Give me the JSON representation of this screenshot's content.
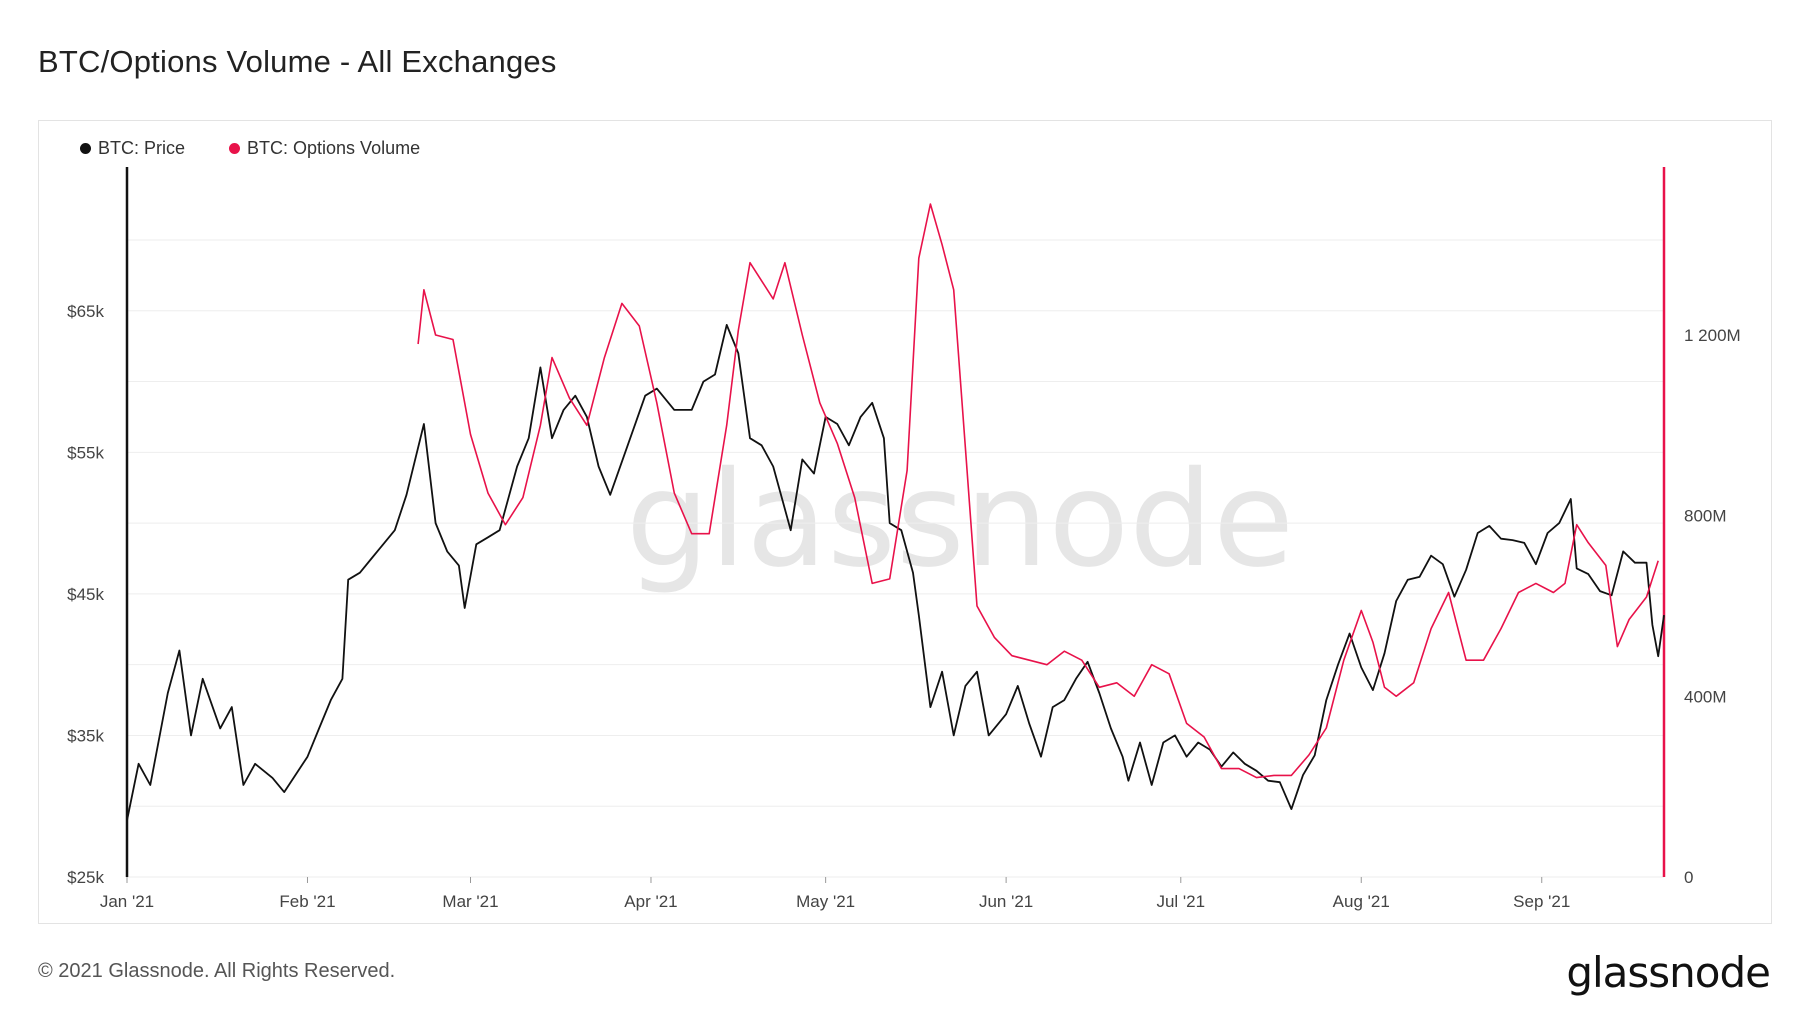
{
  "title": "BTC/Options Volume - All Exchanges",
  "legend": [
    {
      "label": "BTC: Price",
      "color": "#111111"
    },
    {
      "label": "BTC: Options Volume",
      "color": "#e8124a"
    }
  ],
  "watermark": "glassnode",
  "footer": "© 2021 Glassnode. All Rights Reserved.",
  "logo": "glassnode",
  "chart_data": {
    "type": "line",
    "x_ticks": [
      "Jan '21",
      "Feb '21",
      "Mar '21",
      "Apr '21",
      "May '21",
      "Jun '21",
      "Jul '21",
      "Aug '21",
      "Sep '21"
    ],
    "y_left": {
      "ticks": [
        "$25k",
        "$35k",
        "$45k",
        "$55k",
        "$65k"
      ],
      "values": [
        25000,
        35000,
        45000,
        55000,
        65000
      ]
    },
    "y_right": {
      "ticks": [
        "0",
        "400M",
        "800M",
        "1 200M"
      ],
      "values": [
        0,
        400000000,
        800000000,
        1200000000
      ]
    },
    "x_range": [
      "2021-01-01",
      "2021-09-22"
    ],
    "series": [
      {
        "name": "BTC: Price",
        "axis": "left",
        "color": "#111111",
        "points": [
          [
            "2021-01-01",
            29000
          ],
          [
            "2021-01-03",
            33000
          ],
          [
            "2021-01-05",
            31500
          ],
          [
            "2021-01-08",
            38000
          ],
          [
            "2021-01-10",
            41000
          ],
          [
            "2021-01-12",
            35000
          ],
          [
            "2021-01-14",
            39000
          ],
          [
            "2021-01-17",
            35500
          ],
          [
            "2021-01-19",
            37000
          ],
          [
            "2021-01-21",
            31500
          ],
          [
            "2021-01-23",
            33000
          ],
          [
            "2021-01-26",
            32000
          ],
          [
            "2021-01-28",
            31000
          ],
          [
            "2021-02-01",
            33500
          ],
          [
            "2021-02-03",
            35500
          ],
          [
            "2021-02-05",
            37500
          ],
          [
            "2021-02-07",
            39000
          ],
          [
            "2021-02-08",
            46000
          ],
          [
            "2021-02-10",
            46500
          ],
          [
            "2021-02-12",
            47500
          ],
          [
            "2021-02-14",
            48500
          ],
          [
            "2021-02-16",
            49500
          ],
          [
            "2021-02-18",
            52000
          ],
          [
            "2021-02-21",
            57000
          ],
          [
            "2021-02-23",
            50000
          ],
          [
            "2021-02-25",
            48000
          ],
          [
            "2021-02-27",
            47000
          ],
          [
            "2021-02-28",
            44000
          ],
          [
            "2021-03-02",
            48500
          ],
          [
            "2021-03-04",
            49000
          ],
          [
            "2021-03-06",
            49500
          ],
          [
            "2021-03-09",
            54000
          ],
          [
            "2021-03-11",
            56000
          ],
          [
            "2021-03-13",
            61000
          ],
          [
            "2021-03-15",
            56000
          ],
          [
            "2021-03-17",
            58000
          ],
          [
            "2021-03-19",
            59000
          ],
          [
            "2021-03-21",
            57500
          ],
          [
            "2021-03-23",
            54000
          ],
          [
            "2021-03-25",
            52000
          ],
          [
            "2021-03-28",
            55500
          ],
          [
            "2021-03-31",
            59000
          ],
          [
            "2021-04-02",
            59500
          ],
          [
            "2021-04-05",
            58000
          ],
          [
            "2021-04-08",
            58000
          ],
          [
            "2021-04-10",
            60000
          ],
          [
            "2021-04-12",
            60500
          ],
          [
            "2021-04-14",
            64000
          ],
          [
            "2021-04-16",
            62000
          ],
          [
            "2021-04-18",
            56000
          ],
          [
            "2021-04-20",
            55500
          ],
          [
            "2021-04-22",
            54000
          ],
          [
            "2021-04-25",
            49500
          ],
          [
            "2021-04-27",
            54500
          ],
          [
            "2021-04-29",
            53500
          ],
          [
            "2021-05-01",
            57500
          ],
          [
            "2021-05-03",
            57000
          ],
          [
            "2021-05-05",
            55500
          ],
          [
            "2021-05-07",
            57500
          ],
          [
            "2021-05-09",
            58500
          ],
          [
            "2021-05-11",
            56000
          ],
          [
            "2021-05-12",
            50000
          ],
          [
            "2021-05-14",
            49500
          ],
          [
            "2021-05-16",
            46500
          ],
          [
            "2021-05-17",
            43500
          ],
          [
            "2021-05-19",
            37000
          ],
          [
            "2021-05-21",
            39500
          ],
          [
            "2021-05-23",
            35000
          ],
          [
            "2021-05-25",
            38500
          ],
          [
            "2021-05-27",
            39500
          ],
          [
            "2021-05-29",
            35000
          ],
          [
            "2021-06-01",
            36500
          ],
          [
            "2021-06-03",
            38500
          ],
          [
            "2021-06-05",
            35800
          ],
          [
            "2021-06-07",
            33500
          ],
          [
            "2021-06-09",
            37000
          ],
          [
            "2021-06-11",
            37500
          ],
          [
            "2021-06-13",
            39000
          ],
          [
            "2021-06-15",
            40200
          ],
          [
            "2021-06-17",
            38000
          ],
          [
            "2021-06-19",
            35500
          ],
          [
            "2021-06-21",
            33500
          ],
          [
            "2021-06-22",
            31800
          ],
          [
            "2021-06-24",
            34500
          ],
          [
            "2021-06-26",
            31500
          ],
          [
            "2021-06-28",
            34500
          ],
          [
            "2021-06-30",
            35000
          ],
          [
            "2021-07-02",
            33500
          ],
          [
            "2021-07-04",
            34500
          ],
          [
            "2021-07-06",
            34000
          ],
          [
            "2021-07-08",
            32800
          ],
          [
            "2021-07-10",
            33800
          ],
          [
            "2021-07-12",
            33000
          ],
          [
            "2021-07-14",
            32500
          ],
          [
            "2021-07-16",
            31800
          ],
          [
            "2021-07-18",
            31700
          ],
          [
            "2021-07-20",
            29800
          ],
          [
            "2021-07-22",
            32200
          ],
          [
            "2021-07-24",
            33600
          ],
          [
            "2021-07-26",
            37500
          ],
          [
            "2021-07-28",
            40000
          ],
          [
            "2021-07-30",
            42200
          ],
          [
            "2021-08-01",
            39800
          ],
          [
            "2021-08-03",
            38200
          ],
          [
            "2021-08-05",
            40800
          ],
          [
            "2021-08-07",
            44500
          ],
          [
            "2021-08-09",
            46000
          ],
          [
            "2021-08-11",
            46200
          ],
          [
            "2021-08-13",
            47700
          ],
          [
            "2021-08-15",
            47100
          ],
          [
            "2021-08-17",
            44800
          ],
          [
            "2021-08-19",
            46700
          ],
          [
            "2021-08-21",
            49300
          ],
          [
            "2021-08-23",
            49800
          ],
          [
            "2021-08-25",
            48900
          ],
          [
            "2021-08-27",
            48800
          ],
          [
            "2021-08-29",
            48600
          ],
          [
            "2021-08-31",
            47100
          ],
          [
            "2021-09-02",
            49300
          ],
          [
            "2021-09-04",
            50000
          ],
          [
            "2021-09-06",
            51700
          ],
          [
            "2021-09-07",
            46800
          ],
          [
            "2021-09-09",
            46400
          ],
          [
            "2021-09-11",
            45200
          ],
          [
            "2021-09-13",
            44900
          ],
          [
            "2021-09-15",
            48000
          ],
          [
            "2021-09-17",
            47200
          ],
          [
            "2021-09-19",
            47200
          ],
          [
            "2021-09-20",
            42800
          ],
          [
            "2021-09-21",
            40600
          ],
          [
            "2021-09-22",
            43500
          ]
        ]
      },
      {
        "name": "BTC: Options Volume",
        "axis": "right",
        "color": "#e8124a",
        "points": [
          [
            "2021-02-20",
            1180000000
          ],
          [
            "2021-02-21",
            1300000000
          ],
          [
            "2021-02-23",
            1200000000
          ],
          [
            "2021-02-26",
            1190000000
          ],
          [
            "2021-03-01",
            980000000
          ],
          [
            "2021-03-04",
            850000000
          ],
          [
            "2021-03-07",
            780000000
          ],
          [
            "2021-03-10",
            840000000
          ],
          [
            "2021-03-13",
            1000000000
          ],
          [
            "2021-03-15",
            1150000000
          ],
          [
            "2021-03-18",
            1060000000
          ],
          [
            "2021-03-21",
            1000000000
          ],
          [
            "2021-03-24",
            1150000000
          ],
          [
            "2021-03-27",
            1270000000
          ],
          [
            "2021-03-30",
            1220000000
          ],
          [
            "2021-04-02",
            1050000000
          ],
          [
            "2021-04-05",
            850000000
          ],
          [
            "2021-04-08",
            760000000
          ],
          [
            "2021-04-11",
            760000000
          ],
          [
            "2021-04-14",
            1000000000
          ],
          [
            "2021-04-16",
            1210000000
          ],
          [
            "2021-04-18",
            1360000000
          ],
          [
            "2021-04-20",
            1320000000
          ],
          [
            "2021-04-22",
            1280000000
          ],
          [
            "2021-04-24",
            1360000000
          ],
          [
            "2021-04-27",
            1200000000
          ],
          [
            "2021-04-30",
            1050000000
          ],
          [
            "2021-05-03",
            960000000
          ],
          [
            "2021-05-06",
            840000000
          ],
          [
            "2021-05-09",
            650000000
          ],
          [
            "2021-05-12",
            660000000
          ],
          [
            "2021-05-15",
            900000000
          ],
          [
            "2021-05-17",
            1370000000
          ],
          [
            "2021-05-19",
            1490000000
          ],
          [
            "2021-05-21",
            1400000000
          ],
          [
            "2021-05-23",
            1300000000
          ],
          [
            "2021-05-25",
            950000000
          ],
          [
            "2021-05-27",
            600000000
          ],
          [
            "2021-05-30",
            530000000
          ],
          [
            "2021-06-02",
            490000000
          ],
          [
            "2021-06-05",
            480000000
          ],
          [
            "2021-06-08",
            470000000
          ],
          [
            "2021-06-11",
            500000000
          ],
          [
            "2021-06-14",
            480000000
          ],
          [
            "2021-06-17",
            420000000
          ],
          [
            "2021-06-20",
            430000000
          ],
          [
            "2021-06-23",
            400000000
          ],
          [
            "2021-06-26",
            470000000
          ],
          [
            "2021-06-29",
            450000000
          ],
          [
            "2021-07-02",
            340000000
          ],
          [
            "2021-07-05",
            310000000
          ],
          [
            "2021-07-08",
            240000000
          ],
          [
            "2021-07-11",
            240000000
          ],
          [
            "2021-07-14",
            220000000
          ],
          [
            "2021-07-17",
            225000000
          ],
          [
            "2021-07-20",
            225000000
          ],
          [
            "2021-07-23",
            270000000
          ],
          [
            "2021-07-26",
            330000000
          ],
          [
            "2021-07-29",
            480000000
          ],
          [
            "2021-08-01",
            590000000
          ],
          [
            "2021-08-03",
            520000000
          ],
          [
            "2021-08-05",
            420000000
          ],
          [
            "2021-08-07",
            400000000
          ],
          [
            "2021-08-10",
            430000000
          ],
          [
            "2021-08-13",
            550000000
          ],
          [
            "2021-08-16",
            630000000
          ],
          [
            "2021-08-19",
            480000000
          ],
          [
            "2021-08-22",
            480000000
          ],
          [
            "2021-08-25",
            550000000
          ],
          [
            "2021-08-28",
            630000000
          ],
          [
            "2021-08-31",
            650000000
          ],
          [
            "2021-09-03",
            630000000
          ],
          [
            "2021-09-05",
            650000000
          ],
          [
            "2021-09-07",
            780000000
          ],
          [
            "2021-09-09",
            740000000
          ],
          [
            "2021-09-12",
            690000000
          ],
          [
            "2021-09-14",
            510000000
          ],
          [
            "2021-09-16",
            570000000
          ],
          [
            "2021-09-19",
            620000000
          ],
          [
            "2021-09-21",
            700000000
          ]
        ]
      }
    ]
  }
}
